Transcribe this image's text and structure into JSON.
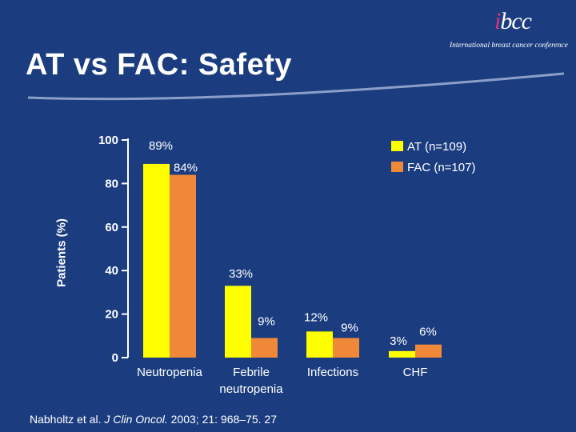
{
  "title": "AT vs FAC: Safety",
  "logo": {
    "mark_prefix": "i",
    "mark_main": "bcc",
    "subtitle": "International breast cancer conference"
  },
  "footnote": {
    "authors": "Nabholtz et al.",
    "journal": "J Clin Oncol.",
    "citation": "2003; 21: 968–75. 27"
  },
  "colors": {
    "background": "#1b3d80",
    "at": "#ffff00",
    "fac": "#f0883a",
    "text": "#ffffff",
    "swoosh": "#8c9fc8"
  },
  "chart_data": {
    "type": "bar",
    "ylabel": "Patients (%)",
    "xlabel": "",
    "ylim": [
      0,
      100
    ],
    "yticks": [
      0,
      20,
      40,
      60,
      80,
      100
    ],
    "categories": [
      [
        "Neutropenia"
      ],
      [
        "Febrile",
        "neutropenia"
      ],
      [
        "Infections"
      ],
      [
        "CHF"
      ]
    ],
    "series": [
      {
        "name": "AT (n=109)",
        "color": "#ffff00",
        "values": [
          89,
          33,
          12,
          3
        ],
        "labels": [
          "89%",
          "33%",
          "12%",
          "3%"
        ]
      },
      {
        "name": "FAC (n=107)",
        "color": "#f0883a",
        "values": [
          84,
          9,
          9,
          6
        ],
        "labels": [
          "84%",
          "9%",
          "9%",
          "6%"
        ]
      }
    ],
    "legend_position": "top-right"
  }
}
